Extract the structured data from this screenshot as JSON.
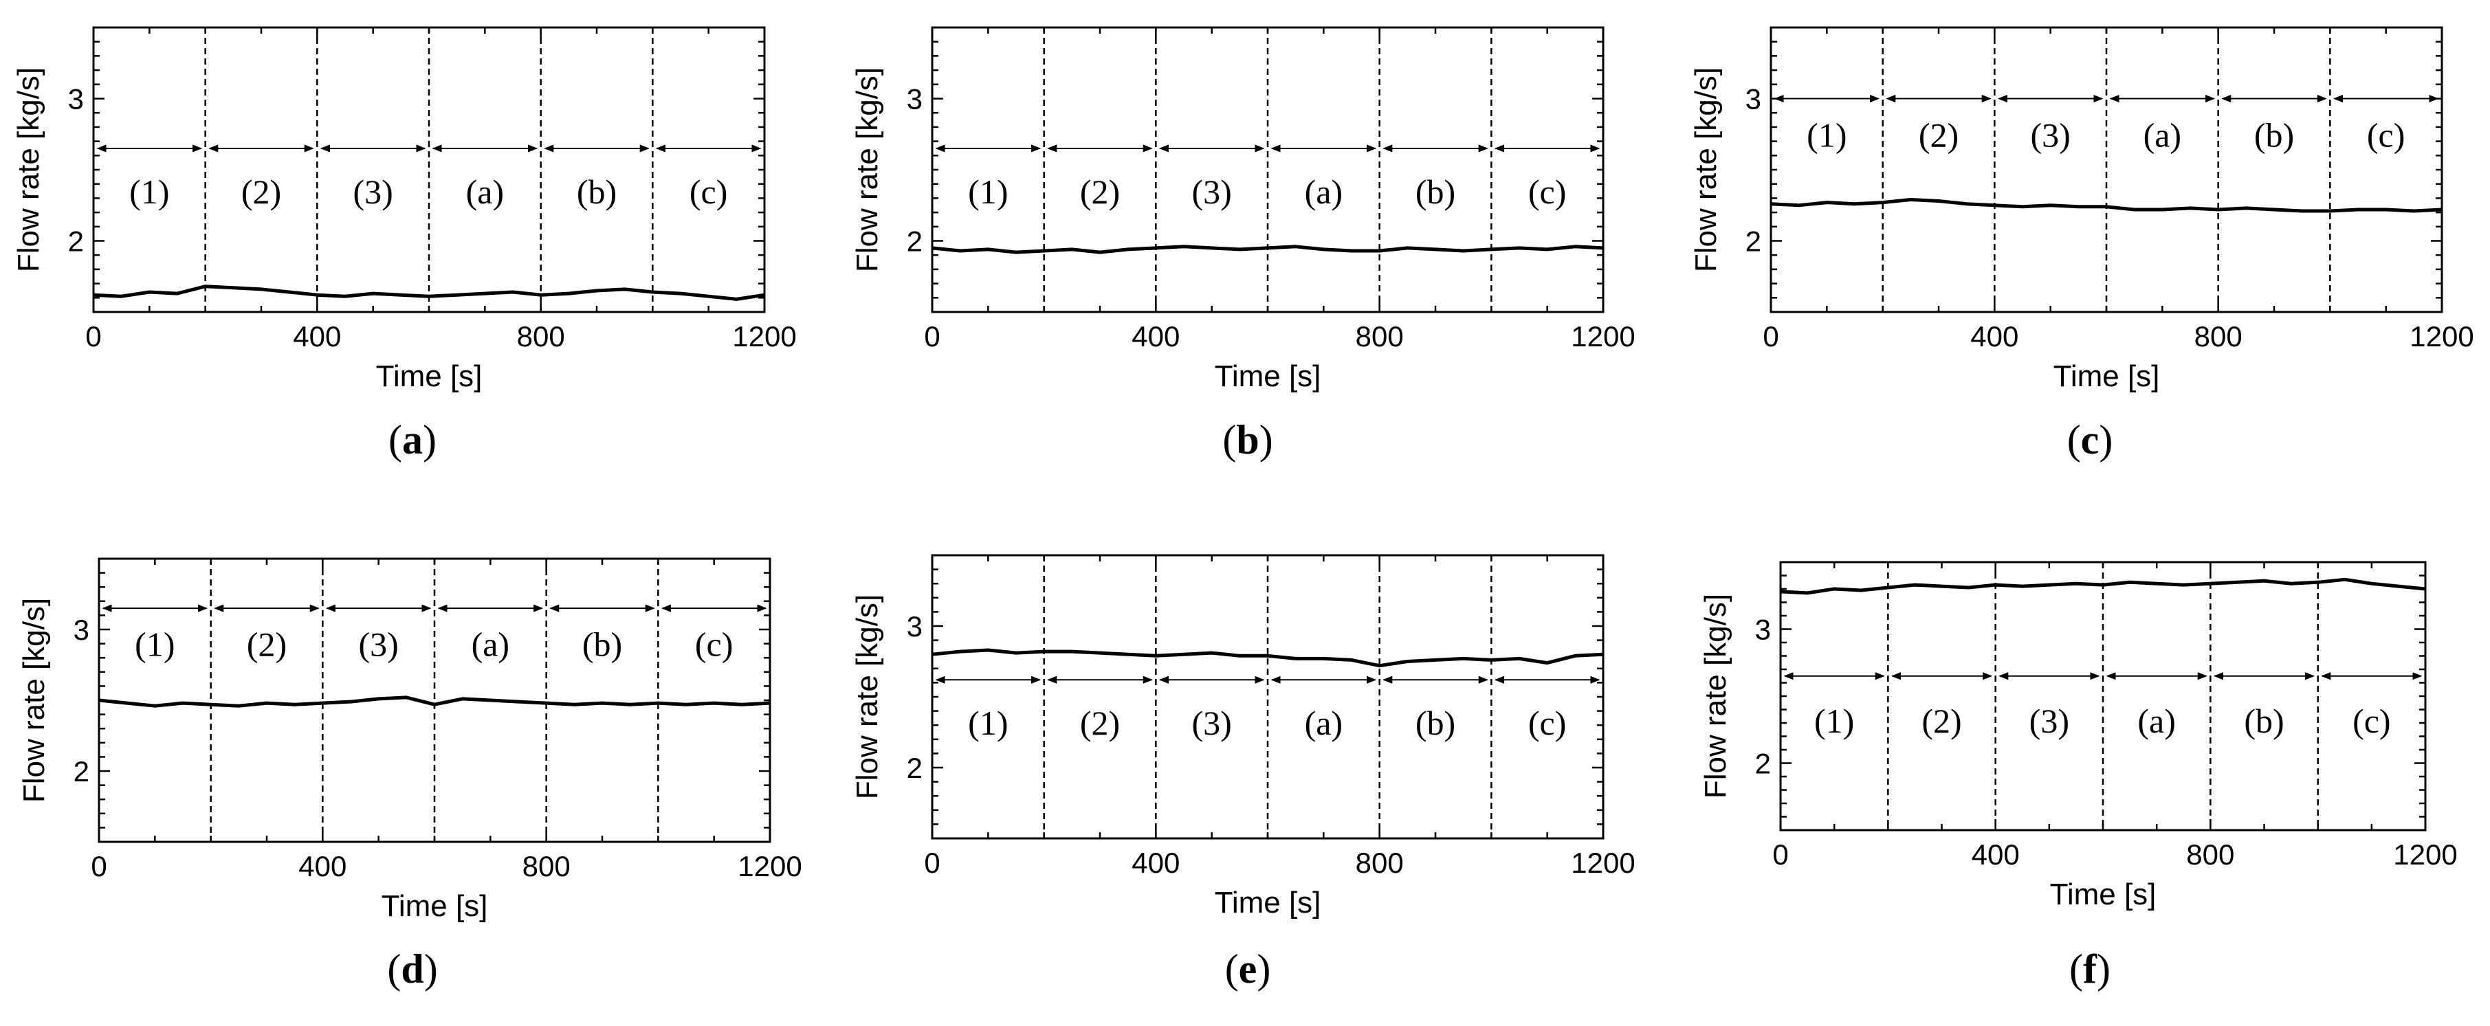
{
  "figure": {
    "panels": [
      {
        "caption_letter": "a",
        "caption_text": "(a)"
      },
      {
        "caption_letter": "b",
        "caption_text": "(b)"
      },
      {
        "caption_letter": "c",
        "caption_text": "(c)"
      },
      {
        "caption_letter": "d",
        "caption_text": "(d)"
      },
      {
        "caption_letter": "e",
        "caption_text": "(e)"
      },
      {
        "caption_letter": "f",
        "caption_text": "(f)"
      }
    ]
  },
  "chart_data": [
    {
      "type": "line",
      "panel": "a",
      "xlabel": "Time [s]",
      "ylabel": "Flow rate [kg/s]",
      "xlim": [
        0,
        1200
      ],
      "ylim": [
        1.5,
        3.5
      ],
      "xticks": [
        0,
        400,
        800,
        1200
      ],
      "yticks": [
        2,
        3
      ],
      "segment_boundaries": [
        200,
        400,
        600,
        800,
        1000
      ],
      "segment_labels": [
        "(1)",
        "(2)",
        "(3)",
        "(a)",
        "(b)",
        "(c)"
      ],
      "arrow_y": 2.65,
      "label_y": 2.35,
      "grid": false,
      "series": [
        {
          "x": [
            0,
            50,
            100,
            150,
            200,
            250,
            300,
            350,
            400,
            450,
            500,
            550,
            600,
            650,
            700,
            750,
            800,
            850,
            900,
            950,
            1000,
            1050,
            1100,
            1150,
            1200
          ],
          "y": [
            1.62,
            1.61,
            1.64,
            1.63,
            1.68,
            1.67,
            1.66,
            1.64,
            1.62,
            1.61,
            1.63,
            1.62,
            1.61,
            1.62,
            1.63,
            1.64,
            1.62,
            1.63,
            1.65,
            1.66,
            1.64,
            1.63,
            1.61,
            1.59,
            1.62
          ]
        }
      ]
    },
    {
      "type": "line",
      "panel": "b",
      "xlabel": "Time [s]",
      "ylabel": "Flow rate [kg/s]",
      "xlim": [
        0,
        1200
      ],
      "ylim": [
        1.5,
        3.5
      ],
      "xticks": [
        0,
        400,
        800,
        1200
      ],
      "yticks": [
        2,
        3
      ],
      "segment_boundaries": [
        200,
        400,
        600,
        800,
        1000
      ],
      "segment_labels": [
        "(1)",
        "(2)",
        "(3)",
        "(a)",
        "(b)",
        "(c)"
      ],
      "arrow_y": 2.65,
      "label_y": 2.35,
      "grid": false,
      "series": [
        {
          "x": [
            0,
            50,
            100,
            150,
            200,
            250,
            300,
            350,
            400,
            450,
            500,
            550,
            600,
            650,
            700,
            750,
            800,
            850,
            900,
            950,
            1000,
            1050,
            1100,
            1150,
            1200
          ],
          "y": [
            1.95,
            1.93,
            1.94,
            1.92,
            1.93,
            1.94,
            1.92,
            1.94,
            1.95,
            1.96,
            1.95,
            1.94,
            1.95,
            1.96,
            1.94,
            1.93,
            1.93,
            1.95,
            1.94,
            1.93,
            1.94,
            1.95,
            1.94,
            1.96,
            1.95
          ]
        }
      ]
    },
    {
      "type": "line",
      "panel": "c",
      "xlabel": "Time [s]",
      "ylabel": "Flow rate [kg/s]",
      "xlim": [
        0,
        1200
      ],
      "ylim": [
        1.5,
        3.5
      ],
      "xticks": [
        0,
        400,
        800,
        1200
      ],
      "yticks": [
        2,
        3
      ],
      "segment_boundaries": [
        200,
        400,
        600,
        800,
        1000
      ],
      "segment_labels": [
        "(1)",
        "(2)",
        "(3)",
        "(a)",
        "(b)",
        "(c)"
      ],
      "arrow_y": 3.0,
      "label_y": 2.75,
      "grid": false,
      "series": [
        {
          "x": [
            0,
            50,
            100,
            150,
            200,
            250,
            300,
            350,
            400,
            450,
            500,
            550,
            600,
            650,
            700,
            750,
            800,
            850,
            900,
            950,
            1000,
            1050,
            1100,
            1150,
            1200
          ],
          "y": [
            2.26,
            2.25,
            2.27,
            2.26,
            2.27,
            2.29,
            2.28,
            2.26,
            2.25,
            2.24,
            2.25,
            2.24,
            2.24,
            2.22,
            2.22,
            2.23,
            2.22,
            2.23,
            2.22,
            2.21,
            2.21,
            2.22,
            2.22,
            2.21,
            2.22
          ]
        }
      ]
    },
    {
      "type": "line",
      "panel": "d",
      "xlabel": "Time [s]",
      "ylabel": "Flow rate [kg/s]",
      "xlim": [
        0,
        1200
      ],
      "ylim": [
        1.5,
        3.5
      ],
      "xticks": [
        0,
        400,
        800,
        1200
      ],
      "yticks": [
        2,
        3
      ],
      "segment_boundaries": [
        200,
        400,
        600,
        800,
        1000
      ],
      "segment_labels": [
        "(1)",
        "(2)",
        "(3)",
        "(a)",
        "(b)",
        "(c)"
      ],
      "arrow_y": 3.15,
      "label_y": 2.9,
      "grid": false,
      "series": [
        {
          "x": [
            0,
            50,
            100,
            150,
            200,
            250,
            300,
            350,
            400,
            450,
            500,
            550,
            600,
            650,
            700,
            750,
            800,
            850,
            900,
            950,
            1000,
            1050,
            1100,
            1150,
            1200
          ],
          "y": [
            2.5,
            2.48,
            2.46,
            2.48,
            2.47,
            2.46,
            2.48,
            2.47,
            2.48,
            2.49,
            2.51,
            2.52,
            2.47,
            2.51,
            2.5,
            2.49,
            2.48,
            2.47,
            2.48,
            2.47,
            2.48,
            2.47,
            2.48,
            2.47,
            2.48
          ]
        }
      ]
    },
    {
      "type": "line",
      "panel": "e",
      "xlabel": "Time [s]",
      "ylabel": "Flow rate [kg/s]",
      "xlim": [
        0,
        1200
      ],
      "ylim": [
        1.5,
        3.5
      ],
      "xticks": [
        0,
        400,
        800,
        1200
      ],
      "yticks": [
        2,
        3
      ],
      "segment_boundaries": [
        200,
        400,
        600,
        800,
        1000
      ],
      "segment_labels": [
        "(1)",
        "(2)",
        "(3)",
        "(a)",
        "(b)",
        "(c)"
      ],
      "arrow_y": 2.62,
      "label_y": 2.32,
      "grid": false,
      "series": [
        {
          "x": [
            0,
            50,
            100,
            150,
            200,
            250,
            300,
            350,
            400,
            450,
            500,
            550,
            600,
            650,
            700,
            750,
            800,
            850,
            900,
            950,
            1000,
            1050,
            1100,
            1150,
            1200
          ],
          "y": [
            2.8,
            2.82,
            2.83,
            2.81,
            2.82,
            2.82,
            2.81,
            2.8,
            2.79,
            2.8,
            2.81,
            2.79,
            2.79,
            2.77,
            2.77,
            2.76,
            2.72,
            2.75,
            2.76,
            2.77,
            2.76,
            2.77,
            2.74,
            2.79,
            2.8
          ]
        }
      ]
    },
    {
      "type": "line",
      "panel": "f",
      "xlabel": "Time [s]",
      "ylabel": "Flow rate [kg/s]",
      "xlim": [
        0,
        1200
      ],
      "ylim": [
        1.5,
        3.5
      ],
      "xticks": [
        0,
        400,
        800,
        1200
      ],
      "yticks": [
        2,
        3
      ],
      "segment_boundaries": [
        200,
        400,
        600,
        800,
        1000
      ],
      "segment_labels": [
        "(1)",
        "(2)",
        "(3)",
        "(a)",
        "(b)",
        "(c)"
      ],
      "arrow_y": 2.65,
      "label_y": 2.32,
      "grid": false,
      "series": [
        {
          "x": [
            0,
            50,
            100,
            150,
            200,
            250,
            300,
            350,
            400,
            450,
            500,
            550,
            600,
            650,
            700,
            750,
            800,
            850,
            900,
            950,
            1000,
            1050,
            1100,
            1150,
            1200
          ],
          "y": [
            3.28,
            3.27,
            3.3,
            3.29,
            3.31,
            3.33,
            3.32,
            3.31,
            3.33,
            3.32,
            3.33,
            3.34,
            3.33,
            3.35,
            3.34,
            3.33,
            3.34,
            3.35,
            3.36,
            3.34,
            3.35,
            3.37,
            3.34,
            3.32,
            3.3
          ]
        }
      ]
    }
  ]
}
